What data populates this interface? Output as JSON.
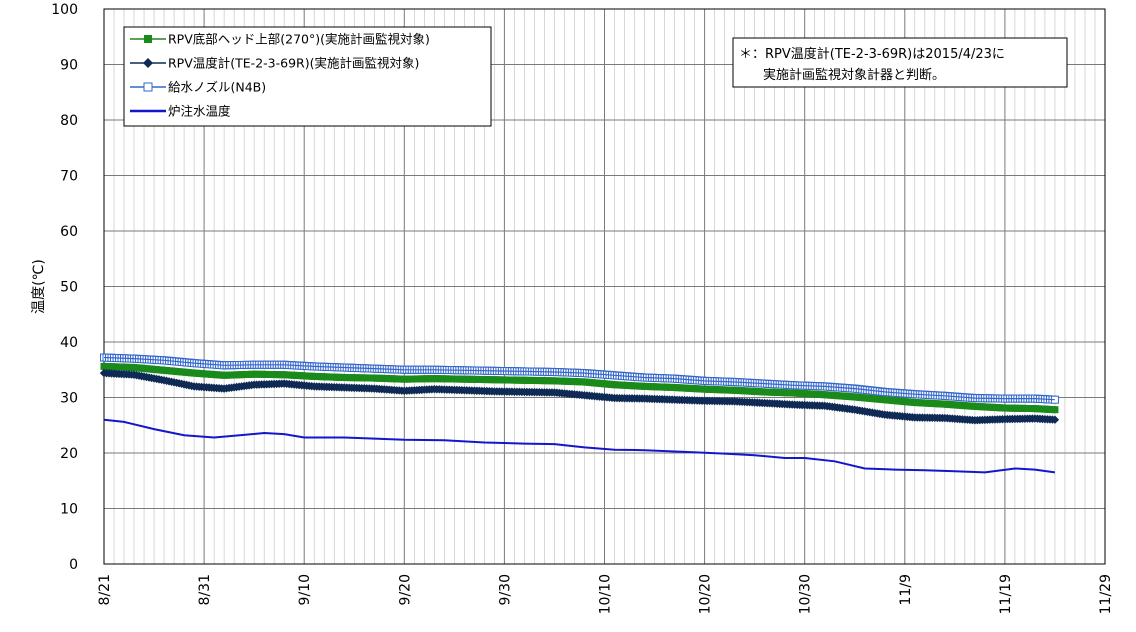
{
  "chart_data": {
    "type": "line",
    "title": "",
    "xlabel": "",
    "ylabel": "温度(℃)",
    "ylim": [
      0,
      100
    ],
    "yticks": [
      0,
      10,
      20,
      30,
      40,
      50,
      60,
      70,
      80,
      90,
      100
    ],
    "xlim": [
      "2015-08-21",
      "2015-11-29"
    ],
    "xticks": [
      "8/21",
      "8/31",
      "9/10",
      "9/20",
      "9/30",
      "10/10",
      "10/20",
      "10/30",
      "11/9",
      "11/19",
      "11/29"
    ],
    "grid": true,
    "legend_position": "top-left",
    "note": [
      "＊：RPV温度計(TE-2-3-69R)は2015/4/23に",
      "実施計画監視対象計器と判断。"
    ],
    "series": [
      {
        "name": "RPV底部ヘッド上部(270°)(実施計画監視対象)",
        "color": "#1a8a1a",
        "marker": "square-filled",
        "x": [
          "2015-08-21",
          "2015-08-24",
          "2015-08-27",
          "2015-08-30",
          "2015-09-02",
          "2015-09-05",
          "2015-09-08",
          "2015-09-11",
          "2015-09-14",
          "2015-09-17",
          "2015-09-20",
          "2015-09-23",
          "2015-09-26",
          "2015-09-29",
          "2015-10-02",
          "2015-10-05",
          "2015-10-08",
          "2015-10-11",
          "2015-10-14",
          "2015-10-17",
          "2015-10-20",
          "2015-10-23",
          "2015-10-26",
          "2015-10-29",
          "2015-11-01",
          "2015-11-04",
          "2015-11-07",
          "2015-11-10",
          "2015-11-13",
          "2015-11-16",
          "2015-11-19",
          "2015-11-22",
          "2015-11-24"
        ],
        "values": [
          35.6,
          35.4,
          34.9,
          34.4,
          34.0,
          34.2,
          34.1,
          33.8,
          33.6,
          33.5,
          33.3,
          33.4,
          33.3,
          33.2,
          33.1,
          33.0,
          32.8,
          32.3,
          32.0,
          31.8,
          31.5,
          31.3,
          31.0,
          30.8,
          30.5,
          30.1,
          29.6,
          29.1,
          28.8,
          28.4,
          28.1,
          28.0,
          27.8
        ]
      },
      {
        "name": "RPV温度計(TE-2-3-69R)(実施計画監視対象)",
        "color": "#0f2a55",
        "marker": "diamond-filled",
        "x": [
          "2015-08-21",
          "2015-08-24",
          "2015-08-27",
          "2015-08-30",
          "2015-09-02",
          "2015-09-05",
          "2015-09-08",
          "2015-09-11",
          "2015-09-14",
          "2015-09-17",
          "2015-09-20",
          "2015-09-23",
          "2015-09-26",
          "2015-09-29",
          "2015-10-02",
          "2015-10-05",
          "2015-10-08",
          "2015-10-11",
          "2015-10-14",
          "2015-10-17",
          "2015-10-20",
          "2015-10-23",
          "2015-10-26",
          "2015-10-29",
          "2015-11-01",
          "2015-11-04",
          "2015-11-07",
          "2015-11-10",
          "2015-11-13",
          "2015-11-16",
          "2015-11-19",
          "2015-11-22",
          "2015-11-24"
        ],
        "values": [
          34.4,
          34.1,
          33.1,
          32.0,
          31.6,
          32.3,
          32.5,
          32.0,
          31.8,
          31.6,
          31.2,
          31.5,
          31.3,
          31.1,
          31.0,
          30.9,
          30.4,
          29.9,
          29.8,
          29.6,
          29.4,
          29.3,
          29.0,
          28.7,
          28.5,
          27.8,
          26.9,
          26.4,
          26.3,
          25.9,
          26.1,
          26.2,
          26.0
        ]
      },
      {
        "name": "給水ノズル(N4B)",
        "color": "#3366cc",
        "marker": "square-open",
        "x": [
          "2015-08-21",
          "2015-08-24",
          "2015-08-27",
          "2015-08-30",
          "2015-09-02",
          "2015-09-05",
          "2015-09-08",
          "2015-09-11",
          "2015-09-14",
          "2015-09-17",
          "2015-09-20",
          "2015-09-23",
          "2015-09-26",
          "2015-09-29",
          "2015-10-02",
          "2015-10-05",
          "2015-10-08",
          "2015-10-11",
          "2015-10-14",
          "2015-10-17",
          "2015-10-20",
          "2015-10-23",
          "2015-10-26",
          "2015-10-29",
          "2015-11-01",
          "2015-11-04",
          "2015-11-07",
          "2015-11-10",
          "2015-11-13",
          "2015-11-16",
          "2015-11-19",
          "2015-11-22",
          "2015-11-24"
        ],
        "values": [
          37.2,
          37.0,
          36.7,
          36.2,
          35.8,
          35.9,
          35.9,
          35.6,
          35.4,
          35.2,
          35.0,
          35.0,
          34.9,
          34.8,
          34.7,
          34.6,
          34.4,
          34.0,
          33.6,
          33.4,
          33.0,
          32.8,
          32.5,
          32.2,
          32.0,
          31.6,
          31.0,
          30.6,
          30.3,
          29.9,
          29.8,
          29.8,
          29.6
        ]
      },
      {
        "name": "炉注水温度",
        "color": "#1515cc",
        "marker": "none",
        "x": [
          "2015-08-21",
          "2015-08-23",
          "2015-08-26",
          "2015-08-29",
          "2015-09-01",
          "2015-09-03",
          "2015-09-06",
          "2015-09-08",
          "2015-09-10",
          "2015-09-14",
          "2015-09-17",
          "2015-09-20",
          "2015-09-24",
          "2015-09-28",
          "2015-10-02",
          "2015-10-05",
          "2015-10-08",
          "2015-10-11",
          "2015-10-14",
          "2015-10-18",
          "2015-10-22",
          "2015-10-25",
          "2015-10-28",
          "2015-10-30",
          "2015-11-02",
          "2015-11-05",
          "2015-11-08",
          "2015-11-11",
          "2015-11-14",
          "2015-11-17",
          "2015-11-20",
          "2015-11-22",
          "2015-11-24"
        ],
        "values": [
          26.0,
          25.6,
          24.3,
          23.2,
          22.8,
          23.1,
          23.6,
          23.4,
          22.8,
          22.8,
          22.6,
          22.4,
          22.3,
          21.9,
          21.7,
          21.6,
          21.0,
          20.6,
          20.5,
          20.2,
          19.9,
          19.6,
          19.1,
          19.1,
          18.5,
          17.2,
          17.0,
          16.9,
          16.7,
          16.5,
          17.2,
          17.0,
          16.5
        ]
      }
    ]
  }
}
